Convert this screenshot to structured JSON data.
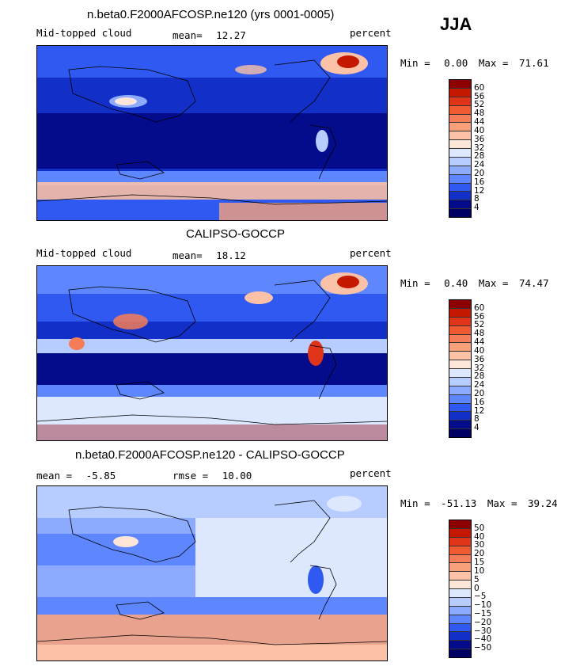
{
  "season": "JJA",
  "chart_data": [
    {
      "type": "heatmap",
      "title": "n.beta0.F2000AFCOSP.ne120 (yrs 0001-0005)",
      "left_label": "Mid-topped cloud",
      "stat1_label": "mean=",
      "stat1_value": "12.27",
      "units": "percent",
      "min_label": "Min =",
      "min_value": "0.00",
      "max_label": "Max =",
      "max_value": "71.61",
      "colorbar_ticks": [
        "60",
        "56",
        "52",
        "48",
        "44",
        "40",
        "36",
        "32",
        "28",
        "24",
        "20",
        "16",
        "12",
        "8",
        "4"
      ],
      "colorbar_colors": [
        "#8c0000",
        "#c41800",
        "#e03418",
        "#f05a30",
        "#f47c56",
        "#f8a07a",
        "#fbc2a8",
        "#fde5d8",
        "#dde8ff",
        "#b7ccff",
        "#8cabff",
        "#5e86ff",
        "#2f59f0",
        "#1230c8",
        "#040c8c",
        "#000064"
      ]
    },
    {
      "type": "heatmap",
      "title": "CALIPSO-GOCCP",
      "left_label": "Mid-topped cloud",
      "stat1_label": "mean=",
      "stat1_value": "18.12",
      "units": "percent",
      "min_label": "Min =",
      "min_value": "0.40",
      "max_label": "Max =",
      "max_value": "74.47",
      "colorbar_ticks": [
        "60",
        "56",
        "52",
        "48",
        "44",
        "40",
        "36",
        "32",
        "28",
        "24",
        "20",
        "16",
        "12",
        "8",
        "4"
      ],
      "colorbar_colors": [
        "#8c0000",
        "#c41800",
        "#e03418",
        "#f05a30",
        "#f47c56",
        "#f8a07a",
        "#fbc2a8",
        "#fde5d8",
        "#dde8ff",
        "#b7ccff",
        "#8cabff",
        "#5e86ff",
        "#2f59f0",
        "#1230c8",
        "#040c8c",
        "#000064"
      ]
    },
    {
      "type": "heatmap",
      "title": "n.beta0.F2000AFCOSP.ne120 - CALIPSO-GOCCP",
      "stat1_label": "mean =",
      "stat1_value": "-5.85",
      "stat2_label": "rmse =",
      "stat2_value": "10.00",
      "units": "percent",
      "min_label": "Min =",
      "min_value": "-51.13",
      "max_label": "Max =",
      "max_value": "39.24",
      "colorbar_ticks": [
        "50",
        "40",
        "30",
        "20",
        "15",
        "10",
        "5",
        "0",
        "−5",
        "−10",
        "−15",
        "−20",
        "−30",
        "−40",
        "−50"
      ],
      "colorbar_colors": [
        "#8c0000",
        "#c41800",
        "#e03418",
        "#f05a30",
        "#f47c56",
        "#f8a07a",
        "#fbc2a8",
        "#fde5d8",
        "#dde8ff",
        "#b7ccff",
        "#8cabff",
        "#5e86ff",
        "#2f59f0",
        "#1230c8",
        "#040c8c",
        "#000064"
      ]
    }
  ]
}
